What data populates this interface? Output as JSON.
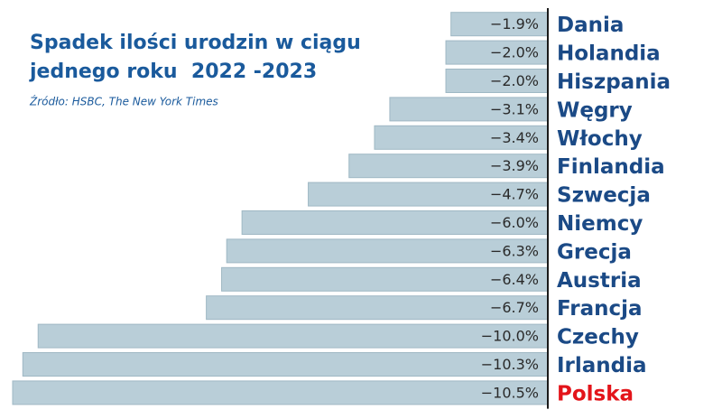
{
  "chart_data": {
    "type": "bar",
    "orientation": "horizontal",
    "title": [
      "Spadek ilości urodzin w ciągu",
      "jednego roku  2022 -2023"
    ],
    "source": "Źródło: HSBC, The New York Times",
    "categories": [
      "Dania",
      "Holandia",
      "Hiszpania",
      "Węgry",
      "Włochy",
      "Finlandia",
      "Szwecja",
      "Niemcy",
      "Grecja",
      "Austria",
      "Francja",
      "Czechy",
      "Irlandia",
      "Polska"
    ],
    "values": [
      -1.9,
      -2.0,
      -2.0,
      -3.1,
      -3.4,
      -3.9,
      -4.7,
      -6.0,
      -6.3,
      -6.4,
      -6.7,
      -10.0,
      -10.3,
      -10.5
    ],
    "value_labels": [
      "−1.9%",
      "−2.0%",
      "−2.0%",
      "−3.1%",
      "−3.4%",
      "−3.9%",
      "−4.7%",
      "−6.0%",
      "−6.3%",
      "−6.4%",
      "−6.7%",
      "−10.0%",
      "−10.3%",
      "−10.5%"
    ],
    "color": "#b9ced8",
    "category_colors": [
      "#1b4a86",
      "#1b4a86",
      "#1b4a86",
      "#1b4a86",
      "#1b4a86",
      "#1b4a86",
      "#1b4a86",
      "#1b4a86",
      "#1b4a86",
      "#1b4a86",
      "#1b4a86",
      "#1b4a86",
      "#1b4a86",
      "#e3141a"
    ]
  }
}
